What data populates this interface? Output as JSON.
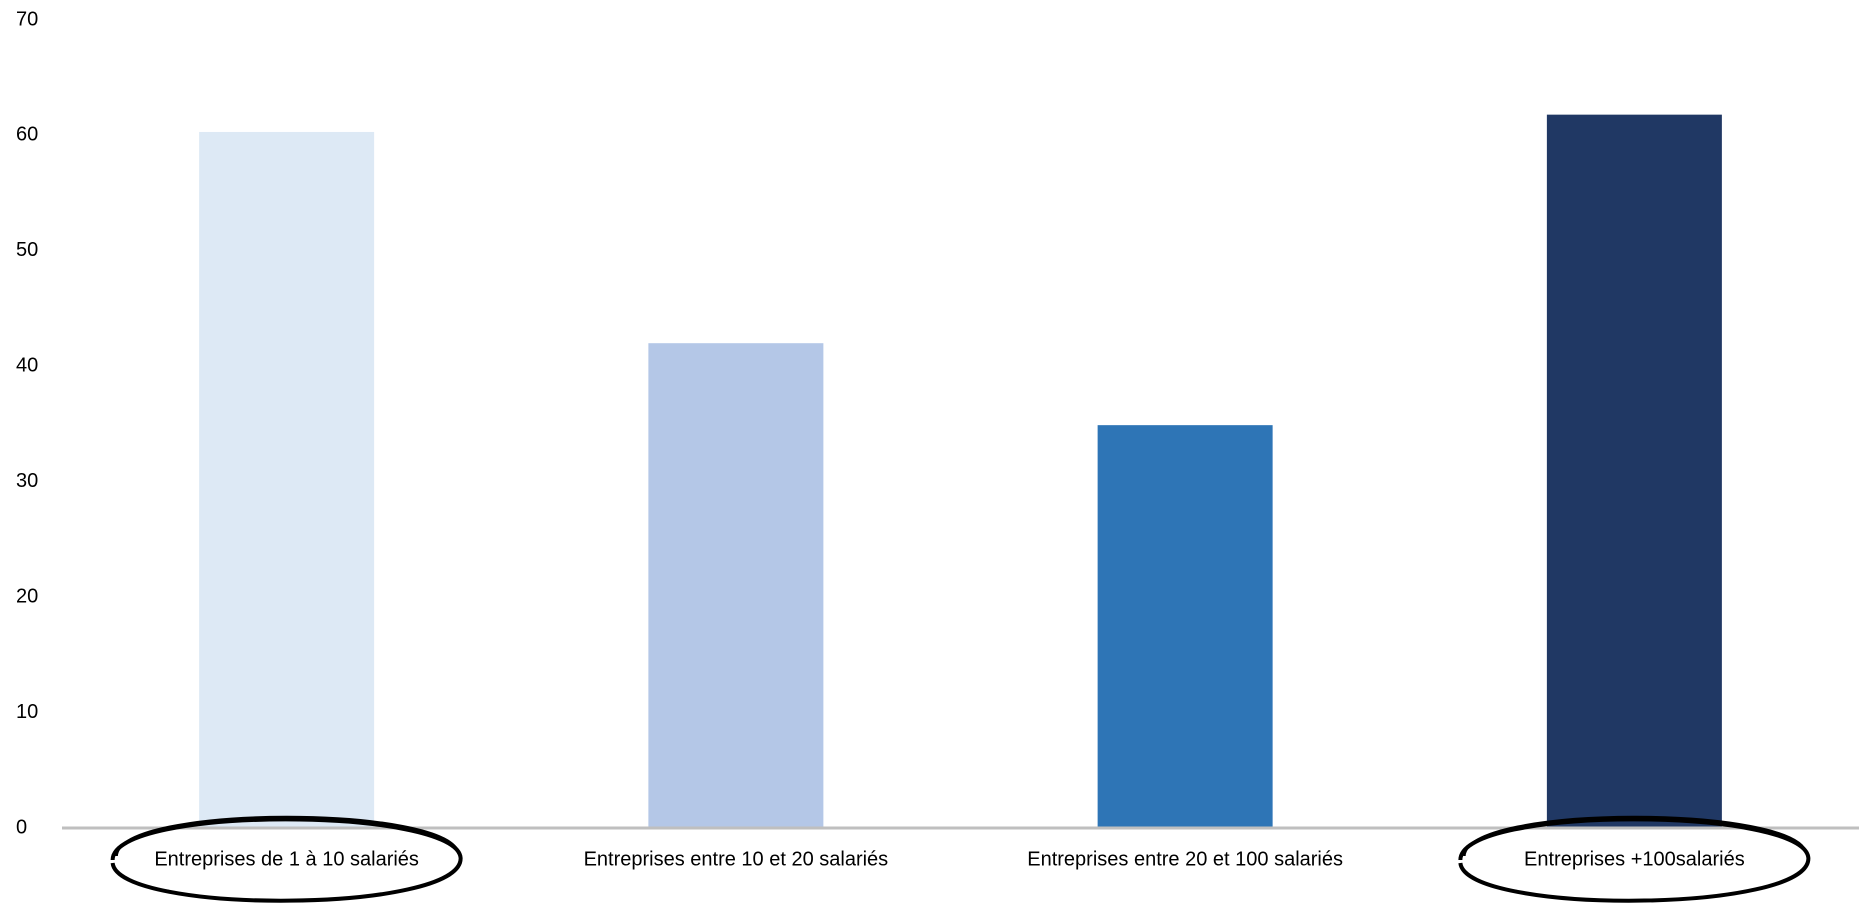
{
  "chart_data": {
    "type": "bar",
    "title": "",
    "xlabel": "",
    "ylabel": "",
    "categories": [
      "Entreprises de 1 à 10 salariés",
      "Entreprises entre 10 et 20 salariés",
      "Entreprises entre 20 et 100 salariés",
      "Entreprises +100salariés"
    ],
    "values": [
      60.3,
      42,
      34.9,
      61.8
    ],
    "colors": [
      "#dde9f5",
      "#b4c7e7",
      "#2e75b6",
      "#203864"
    ],
    "ylim": [
      0,
      70
    ],
    "yticks": [
      0,
      10,
      20,
      30,
      40,
      50,
      60,
      70
    ],
    "grid": false,
    "legend": "none",
    "axis_color": "#bfbfbf",
    "annotations": {
      "circled_categories": [
        "Entreprises de 1 à 10 salariés",
        "Entreprises +100salariés"
      ],
      "circle_color": "#000000"
    }
  }
}
